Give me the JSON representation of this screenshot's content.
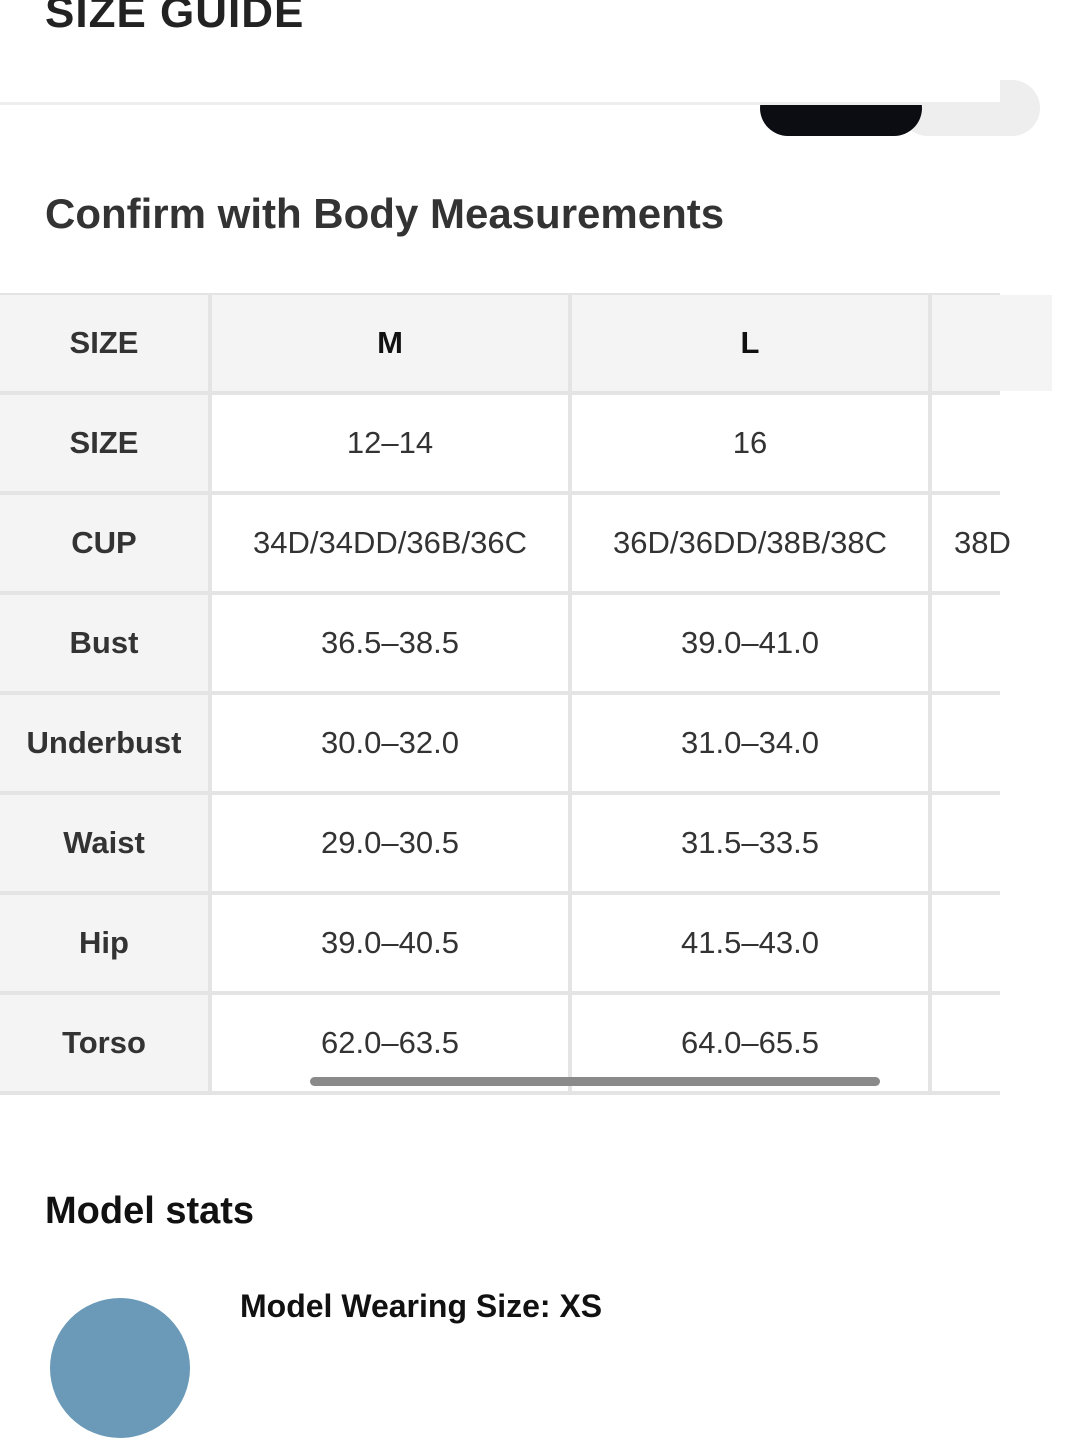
{
  "header": {
    "title": "SIZE GUIDE"
  },
  "section_title": "Confirm with Body Measurements",
  "table": {
    "header": [
      "SIZE",
      "M",
      "L"
    ],
    "rows": [
      [
        "SIZE",
        "12–14",
        "16"
      ],
      [
        "CUP",
        "34D/34DD/36B/36C",
        "36D/36DD/38B/38C"
      ],
      [
        "Bust",
        "36.5–38.5",
        "39.0–41.0"
      ],
      [
        "Underbust",
        "30.0–32.0",
        "31.0–34.0"
      ],
      [
        "Waist",
        "29.0–30.5",
        "31.5–33.5"
      ],
      [
        "Hip",
        "39.0–40.5",
        "41.5–43.0"
      ],
      [
        "Torso",
        "62.0–63.5",
        "64.0–65.5"
      ]
    ],
    "clipped_cell": "38D"
  },
  "model_stats": {
    "title": "Model stats",
    "wearing": "Model Wearing Size: XS"
  }
}
